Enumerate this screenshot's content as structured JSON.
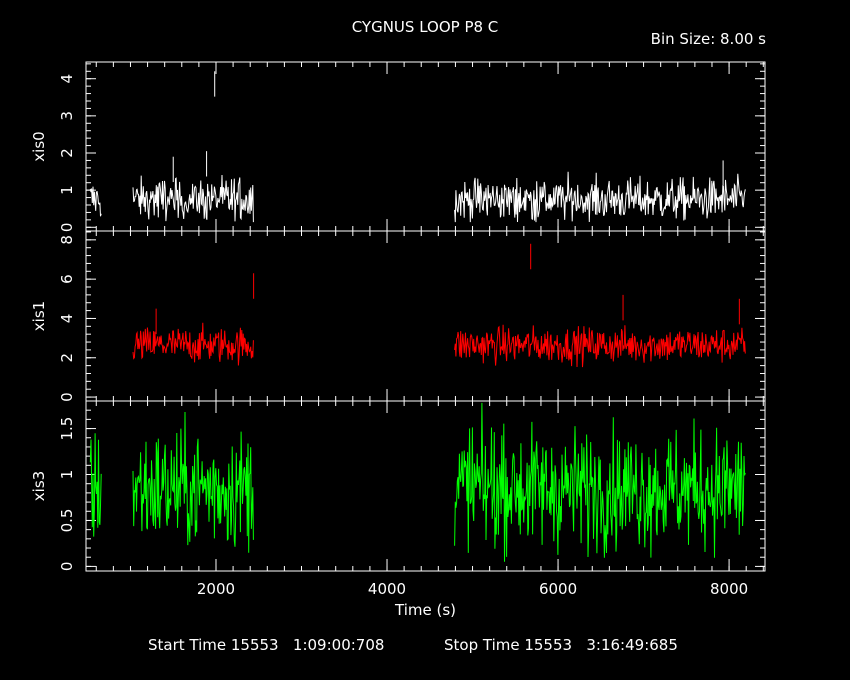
{
  "header": {
    "title": "CYGNUS LOOP P8 C",
    "bin_size": "Bin Size: 8.00 s"
  },
  "footer": {
    "start_time": "Start Time 15553   1:09:00:708",
    "stop_time": "Stop Time 15553   3:16:49:685"
  },
  "colors": {
    "background": "#000000",
    "axes": "#ffffff",
    "xis0": "#ffffff",
    "xis1": "#ff0000",
    "xis3": "#00ff00"
  },
  "chart_data": {
    "type": "line",
    "title": "CYGNUS LOOP P8 C",
    "xlabel": "Time (s)",
    "xlim": [
      480,
      8420
    ],
    "x_ticks": [
      2000,
      4000,
      6000,
      8000
    ],
    "x_tick_labels": [
      "2000",
      "4000",
      "6000",
      "8000"
    ],
    "bin_size_s": 8.0,
    "gaps": [
      [
        660,
        1030
      ],
      [
        2440,
        4790
      ]
    ],
    "panels": [
      {
        "ylabel": "xis0",
        "ylim": [
          -0.1,
          4.45
        ],
        "y_ticks": [
          0,
          1,
          2,
          3,
          4
        ],
        "y_tick_labels": [
          "0",
          "1",
          "2",
          "3",
          "4"
        ],
        "color": "#ffffff",
        "segments": [
          [
            530,
            660
          ],
          [
            1030,
            2440
          ],
          [
            4790,
            8190
          ]
        ],
        "mean": 0.75,
        "spread": 0.28,
        "spikes": [
          {
            "x": 1985,
            "y": 4.2
          },
          [
            7930,
            1.8
          ],
          [
            1500,
            1.9
          ],
          [
            1890,
            2.05
          ]
        ]
      },
      {
        "ylabel": "xis1",
        "ylim": [
          -0.2,
          8.45
        ],
        "y_ticks": [
          0,
          2,
          4,
          6,
          8
        ],
        "y_tick_labels": [
          "0",
          "2",
          "4",
          "6",
          "8"
        ],
        "color": "#ff0000",
        "segments": [
          [
            1030,
            2440
          ],
          [
            4790,
            8190
          ]
        ],
        "mean": 2.65,
        "spread": 0.45,
        "spikes": [
          {
            "x": 2440,
            "y": 6.3
          },
          {
            "x": 5680,
            "y": 7.8
          },
          {
            "x": 6760,
            "y": 5.2
          },
          {
            "x": 8120,
            "y": 5.0
          },
          {
            "x": 1300,
            "y": 4.5
          }
        ]
      },
      {
        "ylabel": "xis3",
        "ylim": [
          -0.05,
          1.8
        ],
        "y_ticks": [
          0,
          0.5,
          1,
          1.5
        ],
        "y_tick_labels": [
          "0",
          "0.5",
          "1",
          "1.5"
        ],
        "color": "#00ff00",
        "segments": [
          [
            530,
            660
          ],
          [
            1030,
            2440
          ],
          [
            4790,
            8190
          ]
        ],
        "mean": 0.85,
        "spread": 0.32,
        "spikes": []
      }
    ]
  }
}
